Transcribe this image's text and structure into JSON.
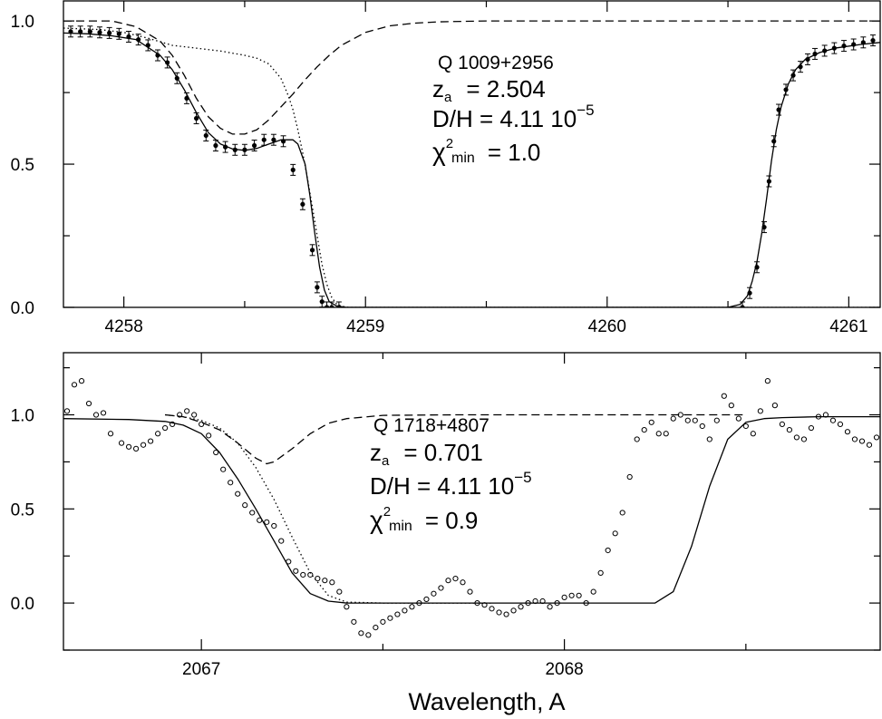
{
  "chart_data": {
    "xlabel": "Wavelength, A",
    "panels": [
      {
        "type": "line",
        "xlim": [
          4257.75,
          4261.13
        ],
        "ylim": [
          0.0,
          1.07
        ],
        "xticks": [
          4258,
          4259,
          4260,
          4261
        ],
        "xtick_labels": [
          "4258",
          "4259",
          "4260",
          "4261"
        ],
        "yticks": [
          0.0,
          0.5,
          1.0
        ],
        "ytick_labels": [
          "0.0",
          "0.5",
          "1.0"
        ],
        "annotation": {
          "name": "Q 1009+2956",
          "z_label": "z",
          "z_sub": "a",
          "z_value": "=  2.504",
          "dh_label": "D/H  =  4.11  10",
          "dh_exp": "−5",
          "chi_label": "χ",
          "chi_sup": "2",
          "chi_sub": "min",
          "chi_value": "=  1.0"
        },
        "series": [
          {
            "style": "solid",
            "x": [
              4257.75,
              4257.85,
              4257.95,
              4258.05,
              4258.15,
              4258.2,
              4258.25,
              4258.3,
              4258.35,
              4258.4,
              4258.45,
              4258.5,
              4258.55,
              4258.6,
              4258.65,
              4258.7,
              4258.72,
              4258.75,
              4258.77,
              4258.79,
              4258.81,
              4258.83,
              4258.85,
              4258.88,
              4258.92,
              4260.5,
              4260.55,
              4260.58,
              4260.6,
              4260.62,
              4260.64,
              4260.66,
              4260.68,
              4260.7,
              4260.72,
              4260.75,
              4260.78,
              4260.82,
              4260.88,
              4260.95,
              4261.05,
              4261.13
            ],
            "y": [
              0.958,
              0.955,
              0.948,
              0.935,
              0.88,
              0.83,
              0.76,
              0.68,
              0.61,
              0.57,
              0.553,
              0.548,
              0.555,
              0.57,
              0.585,
              0.585,
              0.57,
              0.5,
              0.39,
              0.26,
              0.14,
              0.06,
              0.02,
              0.005,
              0.0,
              0.0,
              0.01,
              0.04,
              0.09,
              0.16,
              0.26,
              0.38,
              0.51,
              0.62,
              0.7,
              0.78,
              0.83,
              0.866,
              0.89,
              0.906,
              0.918,
              0.925
            ]
          },
          {
            "style": "dashed",
            "x": [
              4257.75,
              4257.95,
              4258.05,
              4258.15,
              4258.2,
              4258.25,
              4258.3,
              4258.35,
              4258.4,
              4258.45,
              4258.5,
              4258.55,
              4258.6,
              4258.65,
              4258.7,
              4258.75,
              4258.8,
              4258.85,
              4258.9,
              4259.0,
              4259.1,
              4259.2,
              4259.3,
              4259.5,
              4260.0,
              4260.5,
              4261.13
            ],
            "y": [
              1.0,
              1.0,
              0.98,
              0.93,
              0.88,
              0.81,
              0.73,
              0.665,
              0.625,
              0.605,
              0.605,
              0.62,
              0.655,
              0.7,
              0.745,
              0.795,
              0.84,
              0.88,
              0.915,
              0.96,
              0.983,
              0.992,
              0.997,
              1.0,
              1.0,
              1.0,
              1.0
            ]
          },
          {
            "style": "dotted",
            "x": [
              4257.75,
              4257.9,
              4258.0,
              4258.1,
              4258.2,
              4258.3,
              4258.4,
              4258.5,
              4258.55,
              4258.6,
              4258.65,
              4258.68,
              4258.7,
              4258.72,
              4258.74,
              4258.76,
              4258.78,
              4258.8,
              4258.82,
              4258.84,
              4258.86,
              4258.88,
              4258.9,
              4258.93,
              4261.13
            ],
            "y": [
              0.975,
              0.97,
              0.96,
              0.94,
              0.915,
              0.905,
              0.895,
              0.88,
              0.87,
              0.85,
              0.8,
              0.74,
              0.69,
              0.62,
              0.54,
              0.45,
              0.35,
              0.25,
              0.15,
              0.08,
              0.035,
              0.012,
              0.004,
              0.0,
              0.0
            ]
          },
          {
            "style": "points",
            "x": [
              4257.78,
              4257.82,
              4257.86,
              4257.9,
              4257.94,
              4257.98,
              4258.02,
              4258.06,
              4258.1,
              4258.14,
              4258.18,
              4258.22,
              4258.26,
              4258.3,
              4258.34,
              4258.38,
              4258.42,
              4258.46,
              4258.5,
              4258.54,
              4258.58,
              4258.62,
              4258.66,
              4258.7,
              4258.74,
              4258.78,
              4258.8,
              4258.82,
              4258.84,
              4258.86,
              4258.89,
              4260.56,
              4260.59,
              4260.62,
              4260.65,
              4260.67,
              4260.69,
              4260.71,
              4260.74,
              4260.77,
              4260.8,
              4260.83,
              4260.86,
              4260.9,
              4260.94,
              4260.98,
              4261.02,
              4261.06,
              4261.1
            ],
            "y": [
              0.963,
              0.963,
              0.963,
              0.96,
              0.958,
              0.955,
              0.945,
              0.935,
              0.915,
              0.88,
              0.855,
              0.8,
              0.73,
              0.66,
              0.6,
              0.565,
              0.56,
              0.55,
              0.55,
              0.565,
              0.585,
              0.585,
              0.58,
              0.48,
              0.36,
              0.2,
              0.07,
              0.02,
              0.0,
              0.0,
              0.0,
              0.0,
              0.05,
              0.14,
              0.28,
              0.44,
              0.58,
              0.69,
              0.76,
              0.81,
              0.84,
              0.866,
              0.885,
              0.896,
              0.905,
              0.913,
              0.918,
              0.925,
              0.932
            ]
          }
        ]
      },
      {
        "type": "line",
        "xlim": [
          2066.62,
          2068.87
        ],
        "ylim": [
          -0.25,
          1.33
        ],
        "xticks": [
          2067,
          2068
        ],
        "xtick_labels": [
          "2067",
          "2068"
        ],
        "yticks": [
          0.0,
          0.5,
          1.0
        ],
        "ytick_labels": [
          "0.0",
          "0.5",
          "1.0"
        ],
        "annotation": {
          "name": "Q 1718+4807",
          "z_label": "z",
          "z_sub": "a",
          "z_value": "=  0.701",
          "dh_label": "D/H  =  4.11  10",
          "dh_exp": "−5",
          "chi_label": "χ",
          "chi_sup": "2",
          "chi_sub": "min",
          "chi_value": "=  0.9"
        },
        "series": [
          {
            "style": "solid",
            "x": [
              2066.62,
              2066.8,
              2066.9,
              2066.95,
              2067.0,
              2067.05,
              2067.1,
              2067.15,
              2067.2,
              2067.25,
              2067.3,
              2067.35,
              2067.4,
              2067.5,
              2067.8,
              2068.1,
              2068.25,
              2068.3,
              2068.35,
              2068.4,
              2068.45,
              2068.5,
              2068.55,
              2068.6,
              2068.7,
              2068.87
            ],
            "y": [
              0.98,
              0.975,
              0.965,
              0.945,
              0.9,
              0.8,
              0.66,
              0.5,
              0.33,
              0.16,
              0.05,
              0.01,
              0.0,
              0.0,
              0.0,
              0.0,
              0.0,
              0.06,
              0.3,
              0.62,
              0.87,
              0.96,
              0.98,
              0.985,
              0.99,
              0.99
            ],
            "points_pad": 0
          },
          {
            "style": "dashed",
            "x": [
              2066.9,
              2066.95,
              2067.0,
              2067.05,
              2067.1,
              2067.15,
              2067.18,
              2067.2,
              2067.25,
              2067.3,
              2067.35,
              2067.4,
              2067.5,
              2067.7,
              2068.0,
              2068.5
            ],
            "y": [
              1.0,
              0.99,
              0.96,
              0.92,
              0.85,
              0.77,
              0.74,
              0.75,
              0.82,
              0.9,
              0.955,
              0.98,
              0.997,
              1.0,
              1.0,
              1.0
            ]
          },
          {
            "style": "dotted",
            "x": [
              2066.9,
              2066.95,
              2067.0,
              2067.05,
              2067.1,
              2067.15,
              2067.2,
              2067.25,
              2067.3,
              2067.35,
              2067.4,
              2067.5,
              2067.8
            ],
            "y": [
              1.0,
              0.99,
              0.97,
              0.93,
              0.85,
              0.72,
              0.55,
              0.35,
              0.16,
              0.04,
              0.005,
              0.0,
              0.0
            ]
          },
          {
            "style": "open-points",
            "x": [
              2066.63,
              2066.65,
              2066.67,
              2066.69,
              2066.71,
              2066.73,
              2066.75,
              2066.78,
              2066.8,
              2066.82,
              2066.84,
              2066.86,
              2066.88,
              2066.9,
              2066.92,
              2066.94,
              2066.96,
              2066.98,
              2067.0,
              2067.02,
              2067.04,
              2067.06,
              2067.08,
              2067.1,
              2067.12,
              2067.14,
              2067.16,
              2067.18,
              2067.2,
              2067.22,
              2067.24,
              2067.26,
              2067.28,
              2067.3,
              2067.32,
              2067.34,
              2067.36,
              2067.38,
              2067.4,
              2067.42,
              2067.44,
              2067.46,
              2067.48,
              2067.5,
              2067.52,
              2067.54,
              2067.56,
              2067.58,
              2067.6,
              2067.62,
              2067.64,
              2067.66,
              2067.68,
              2067.7,
              2067.72,
              2067.74,
              2067.76,
              2067.78,
              2067.8,
              2067.82,
              2067.84,
              2067.86,
              2067.88,
              2067.9,
              2067.92,
              2067.94,
              2067.96,
              2067.98,
              2068.0,
              2068.02,
              2068.04,
              2068.06,
              2068.08,
              2068.1,
              2068.12,
              2068.14,
              2068.16,
              2068.18,
              2068.2,
              2068.22,
              2068.24,
              2068.26,
              2068.28,
              2068.3,
              2068.32,
              2068.34,
              2068.36,
              2068.38,
              2068.4,
              2068.42,
              2068.44,
              2068.46,
              2068.48,
              2068.5,
              2068.52,
              2068.54,
              2068.56,
              2068.58,
              2068.6,
              2068.62,
              2068.64,
              2068.66,
              2068.68,
              2068.7,
              2068.72,
              2068.74,
              2068.76,
              2068.78,
              2068.8,
              2068.82,
              2068.84,
              2068.86
            ],
            "y": [
              1.02,
              1.16,
              1.18,
              1.06,
              1.0,
              1.01,
              0.9,
              0.85,
              0.83,
              0.82,
              0.84,
              0.86,
              0.9,
              0.93,
              0.95,
              1.0,
              1.02,
              1.0,
              0.95,
              0.89,
              0.8,
              0.71,
              0.64,
              0.58,
              0.52,
              0.48,
              0.44,
              0.43,
              0.41,
              0.33,
              0.22,
              0.17,
              0.15,
              0.15,
              0.13,
              0.12,
              0.11,
              0.06,
              -0.02,
              -0.1,
              -0.16,
              -0.17,
              -0.13,
              -0.1,
              -0.08,
              -0.06,
              -0.04,
              -0.02,
              0.0,
              0.02,
              0.05,
              0.08,
              0.12,
              0.13,
              0.11,
              0.06,
              0.0,
              -0.01,
              -0.03,
              -0.05,
              -0.06,
              -0.04,
              -0.02,
              0.0,
              0.01,
              0.01,
              -0.02,
              0.0,
              0.03,
              0.04,
              0.04,
              0.0,
              0.06,
              0.16,
              0.28,
              0.37,
              0.48,
              0.67,
              0.87,
              0.92,
              0.96,
              0.9,
              0.9,
              0.98,
              1.0,
              0.97,
              0.97,
              0.94,
              0.87,
              0.97,
              1.1,
              1.05,
              0.98,
              0.94,
              0.9,
              1.02,
              1.18,
              1.05,
              0.95,
              0.92,
              0.88,
              0.87,
              0.93,
              0.99,
              1.0,
              0.97,
              0.95,
              0.91,
              0.87,
              0.86,
              0.84,
              0.88
            ]
          }
        ]
      }
    ]
  }
}
